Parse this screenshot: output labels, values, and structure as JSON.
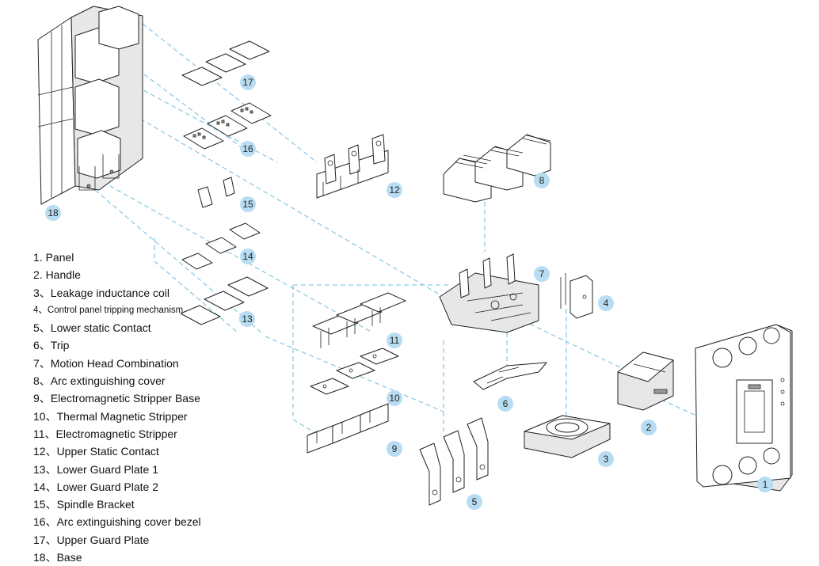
{
  "diagram": {
    "callouts": [
      "1",
      "2",
      "3",
      "4",
      "5",
      "6",
      "7",
      "8",
      "9",
      "10",
      "11",
      "12",
      "13",
      "14",
      "15",
      "16",
      "17",
      "18"
    ],
    "callout_color": "#b8ddf2",
    "leader_color": "#8fc9e6"
  },
  "legend": [
    "1. Panel",
    "2. Handle",
    "3、Leakage inductance coil",
    "4、Control panel tripping mechanism",
    "5、Lower static Contact",
    "6、Trip",
    "7、Motion Head Combination",
    "8、Arc extinguishing cover",
    "9、Electromagnetic Stripper Base",
    "10、Thermal Magnetic Stripper",
    "11、Electromagnetic Stripper",
    "12、Upper Static Contact",
    "13、Lower Guard Plate 1",
    "14、Lower Guard Plate 2",
    "15、Spindle Bracket",
    "16、Arc extinguishing cover bezel",
    "17、Upper Guard Plate",
    "18、Base"
  ]
}
